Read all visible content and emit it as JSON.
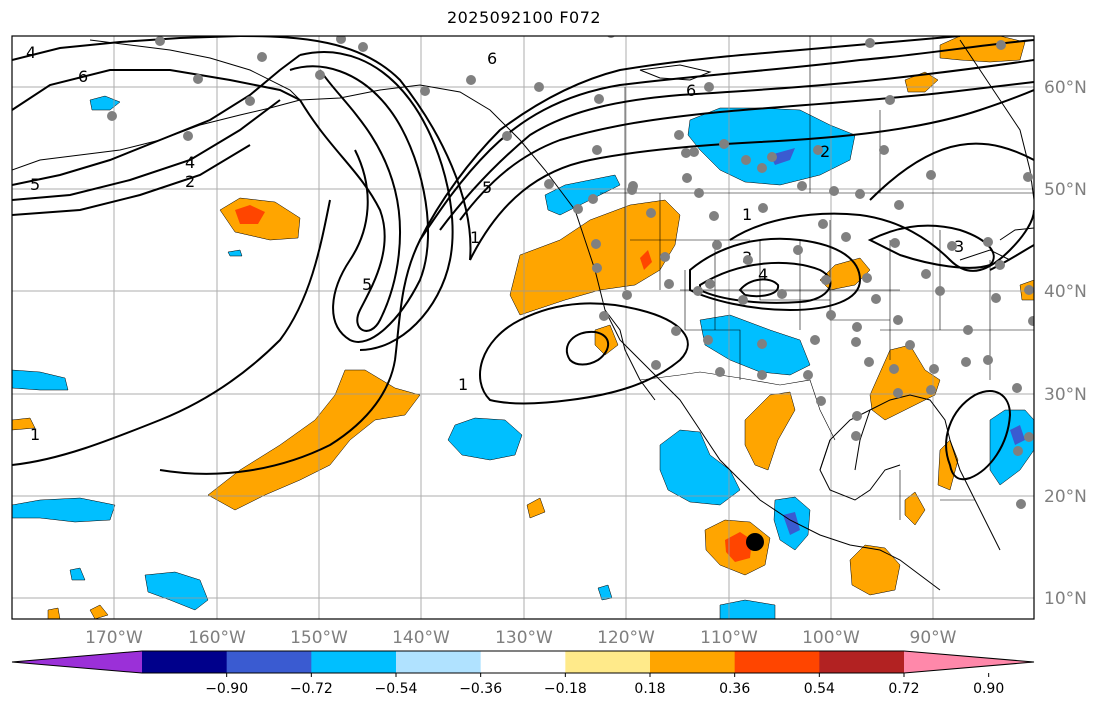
{
  "title": "2025092100 F072",
  "lon_labels": [
    "170°W",
    "160°W",
    "150°W",
    "140°W",
    "130°W",
    "120°W",
    "110°W",
    "100°W",
    "90°W"
  ],
  "lat_labels": [
    "60°N",
    "50°N",
    "40°N",
    "30°N",
    "20°N",
    "10°N"
  ],
  "colorbar": {
    "ticks": [
      "−0.90",
      "−0.72",
      "−0.54",
      "−0.36",
      "−0.18",
      "0.18",
      "0.36",
      "0.54",
      "0.72",
      "0.90"
    ],
    "colors": [
      "#9b30d8",
      "#00008b",
      "#3a5bd1",
      "#00bfff",
      "#b0e2ff",
      "#ffffff",
      "#ffea8a",
      "#ffa500",
      "#ff4500",
      "#b22222",
      "#ff88aa"
    ]
  },
  "contour_labels": [
    "4",
    "6",
    "6",
    "6",
    "5",
    "2",
    "4",
    "5",
    "1",
    "5",
    "1",
    "1",
    "3",
    "4",
    "1",
    "2",
    "3"
  ],
  "marker": "black-dot"
}
